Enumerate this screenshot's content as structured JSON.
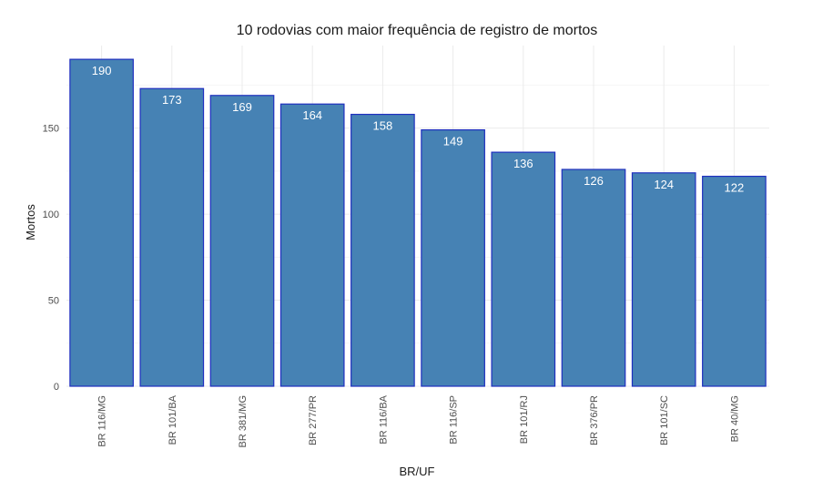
{
  "chart_data": {
    "type": "bar",
    "title": "10 rodovias com maior frequência de registro de mortos",
    "xlabel": "BR/UF",
    "ylabel": "Mortos",
    "categories": [
      "BR 116/MG",
      "BR 101/BA",
      "BR 381/MG",
      "BR 277/PR",
      "BR 116/BA",
      "BR 116/SP",
      "BR 101/RJ",
      "BR 376/PR",
      "BR 101/SC",
      "BR 40/MG"
    ],
    "values": [
      190,
      173,
      169,
      164,
      158,
      149,
      136,
      126,
      124,
      122
    ],
    "yticks": [
      0,
      50,
      100,
      150
    ],
    "ylim": [
      0,
      198
    ],
    "grid": true,
    "colors": {
      "bar_fill": "#4682b4",
      "bar_outline": "#1f2fbf"
    }
  }
}
